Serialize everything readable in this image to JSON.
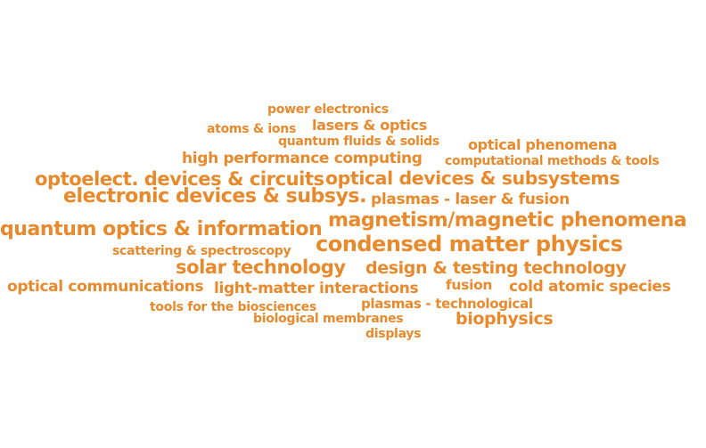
{
  "accent_color": "#e8892c",
  "words": [
    {
      "text": "power electronics",
      "weight": 1
    },
    {
      "text": "atoms & ions",
      "weight": 1
    },
    {
      "text": "lasers & optics",
      "weight": 2
    },
    {
      "text": "quantum fluids & solids",
      "weight": 1
    },
    {
      "text": "optical phenomena",
      "weight": 2
    },
    {
      "text": "high performance computing",
      "weight": 3
    },
    {
      "text": "computational methods & tools",
      "weight": 1
    },
    {
      "text": "optoelect. devices & circuits",
      "weight": 4
    },
    {
      "text": "optical devices & subsystems",
      "weight": 4
    },
    {
      "text": "electronic devices & subsys.",
      "weight": 5
    },
    {
      "text": "plasmas - laser & fusion",
      "weight": 2
    },
    {
      "text": "quantum optics & information",
      "weight": 5
    },
    {
      "text": "magnetism/magnetic phenomena",
      "weight": 5
    },
    {
      "text": "scattering & spectroscopy",
      "weight": 1
    },
    {
      "text": "condensed matter physics",
      "weight": 5
    },
    {
      "text": "solar technology",
      "weight": 4
    },
    {
      "text": "design & testing technology",
      "weight": 3
    },
    {
      "text": "optical communications",
      "weight": 3
    },
    {
      "text": "light-matter interactions",
      "weight": 3
    },
    {
      "text": "fusion",
      "weight": 2
    },
    {
      "text": "cold atomic species",
      "weight": 3
    },
    {
      "text": "tools for the biosciences",
      "weight": 1
    },
    {
      "text": "plasmas - technological",
      "weight": 1
    },
    {
      "text": "biological membranes",
      "weight": 1
    },
    {
      "text": "biophysics",
      "weight": 4
    },
    {
      "text": "displays",
      "weight": 1
    }
  ]
}
